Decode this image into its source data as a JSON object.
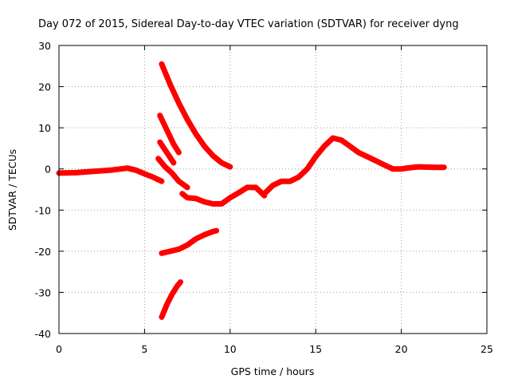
{
  "chart_data": {
    "type": "line",
    "title": "Day 072 of 2015, Sidereal Day-to-day VTEC variation (SDTVAR) for receiver dyng",
    "xlabel": "GPS time / hours",
    "ylabel": "SDTVAR / TECUs",
    "xlim": [
      0,
      25
    ],
    "ylim": [
      -40,
      30
    ],
    "xticks": [
      0,
      5,
      10,
      15,
      20,
      25
    ],
    "yticks": [
      -40,
      -30,
      -20,
      -10,
      0,
      10,
      20,
      30
    ],
    "xtick_labels": [
      "0",
      "5",
      "10",
      "15",
      "20",
      "25"
    ],
    "ytick_labels": [
      "-40",
      "-30",
      "-20",
      "-10",
      "0",
      "10",
      "20",
      "30"
    ],
    "grid": true,
    "colors": {
      "series": "#ff0000",
      "grid": "#a0a0a0",
      "axis": "#000000"
    },
    "series": [
      {
        "name": "main-trace",
        "points": [
          [
            0,
            -1
          ],
          [
            1,
            -0.9
          ],
          [
            2,
            -0.6
          ],
          [
            3,
            -0.3
          ],
          [
            4,
            0.2
          ],
          [
            4.5,
            -0.3
          ],
          [
            5,
            -1.2
          ],
          [
            5.5,
            -2
          ],
          [
            6,
            -3
          ]
        ]
      },
      {
        "name": "arc-descending-high",
        "points": [
          [
            6,
            25.5
          ],
          [
            6.5,
            20.5
          ],
          [
            7,
            16
          ],
          [
            7.5,
            12
          ],
          [
            8,
            8.5
          ],
          [
            8.5,
            5.5
          ],
          [
            9,
            3.2
          ],
          [
            9.5,
            1.5
          ],
          [
            10,
            0.5
          ]
        ]
      },
      {
        "name": "arc-descending-2",
        "points": [
          [
            5.9,
            13
          ],
          [
            6.3,
            9.5
          ],
          [
            6.7,
            6
          ],
          [
            7,
            4
          ]
        ]
      },
      {
        "name": "arc-descending-3",
        "points": [
          [
            5.9,
            6.5
          ],
          [
            6.3,
            4
          ],
          [
            6.7,
            1.5
          ]
        ]
      },
      {
        "name": "arc-descending-4",
        "points": [
          [
            5.8,
            2.5
          ],
          [
            6.2,
            0.5
          ],
          [
            6.6,
            -1
          ],
          [
            7,
            -3
          ],
          [
            7.5,
            -4.5
          ]
        ]
      },
      {
        "name": "arc-valley",
        "points": [
          [
            7.2,
            -6
          ],
          [
            7.5,
            -7
          ],
          [
            8,
            -7.2
          ],
          [
            8.5,
            -8
          ],
          [
            9,
            -8.5
          ],
          [
            9.5,
            -8.5
          ],
          [
            10,
            -7
          ],
          [
            10.5,
            -5.8
          ],
          [
            11,
            -4.5
          ],
          [
            11.5,
            -4.5
          ],
          [
            12,
            -6.5
          ]
        ]
      },
      {
        "name": "arc-rising-peak",
        "points": [
          [
            12,
            -6
          ],
          [
            12.5,
            -4
          ],
          [
            13,
            -3
          ],
          [
            13.5,
            -3
          ],
          [
            14,
            -2
          ],
          [
            14.5,
            0
          ],
          [
            15,
            3
          ],
          [
            15.5,
            5.5
          ],
          [
            16,
            7.5
          ],
          [
            16.5,
            7
          ],
          [
            17,
            5.5
          ],
          [
            17.5,
            4
          ],
          [
            18,
            3
          ],
          [
            18.5,
            2
          ],
          [
            19,
            1
          ],
          [
            19.5,
            0
          ],
          [
            20,
            0
          ],
          [
            20.5,
            0.3
          ],
          [
            21,
            0.5
          ],
          [
            22,
            0.4
          ],
          [
            22.5,
            0.4
          ]
        ]
      },
      {
        "name": "arc-ascending-low",
        "points": [
          [
            6,
            -20.5
          ],
          [
            6.5,
            -20
          ],
          [
            7,
            -19.5
          ],
          [
            7.5,
            -18.5
          ],
          [
            8,
            -17
          ],
          [
            8.5,
            -16
          ],
          [
            9,
            -15.2
          ],
          [
            9.2,
            -15
          ]
        ]
      },
      {
        "name": "arc-ascending-lowest",
        "points": [
          [
            6,
            -36
          ],
          [
            6.3,
            -33
          ],
          [
            6.6,
            -30.5
          ],
          [
            6.9,
            -28.5
          ],
          [
            7.1,
            -27.5
          ]
        ]
      }
    ]
  }
}
